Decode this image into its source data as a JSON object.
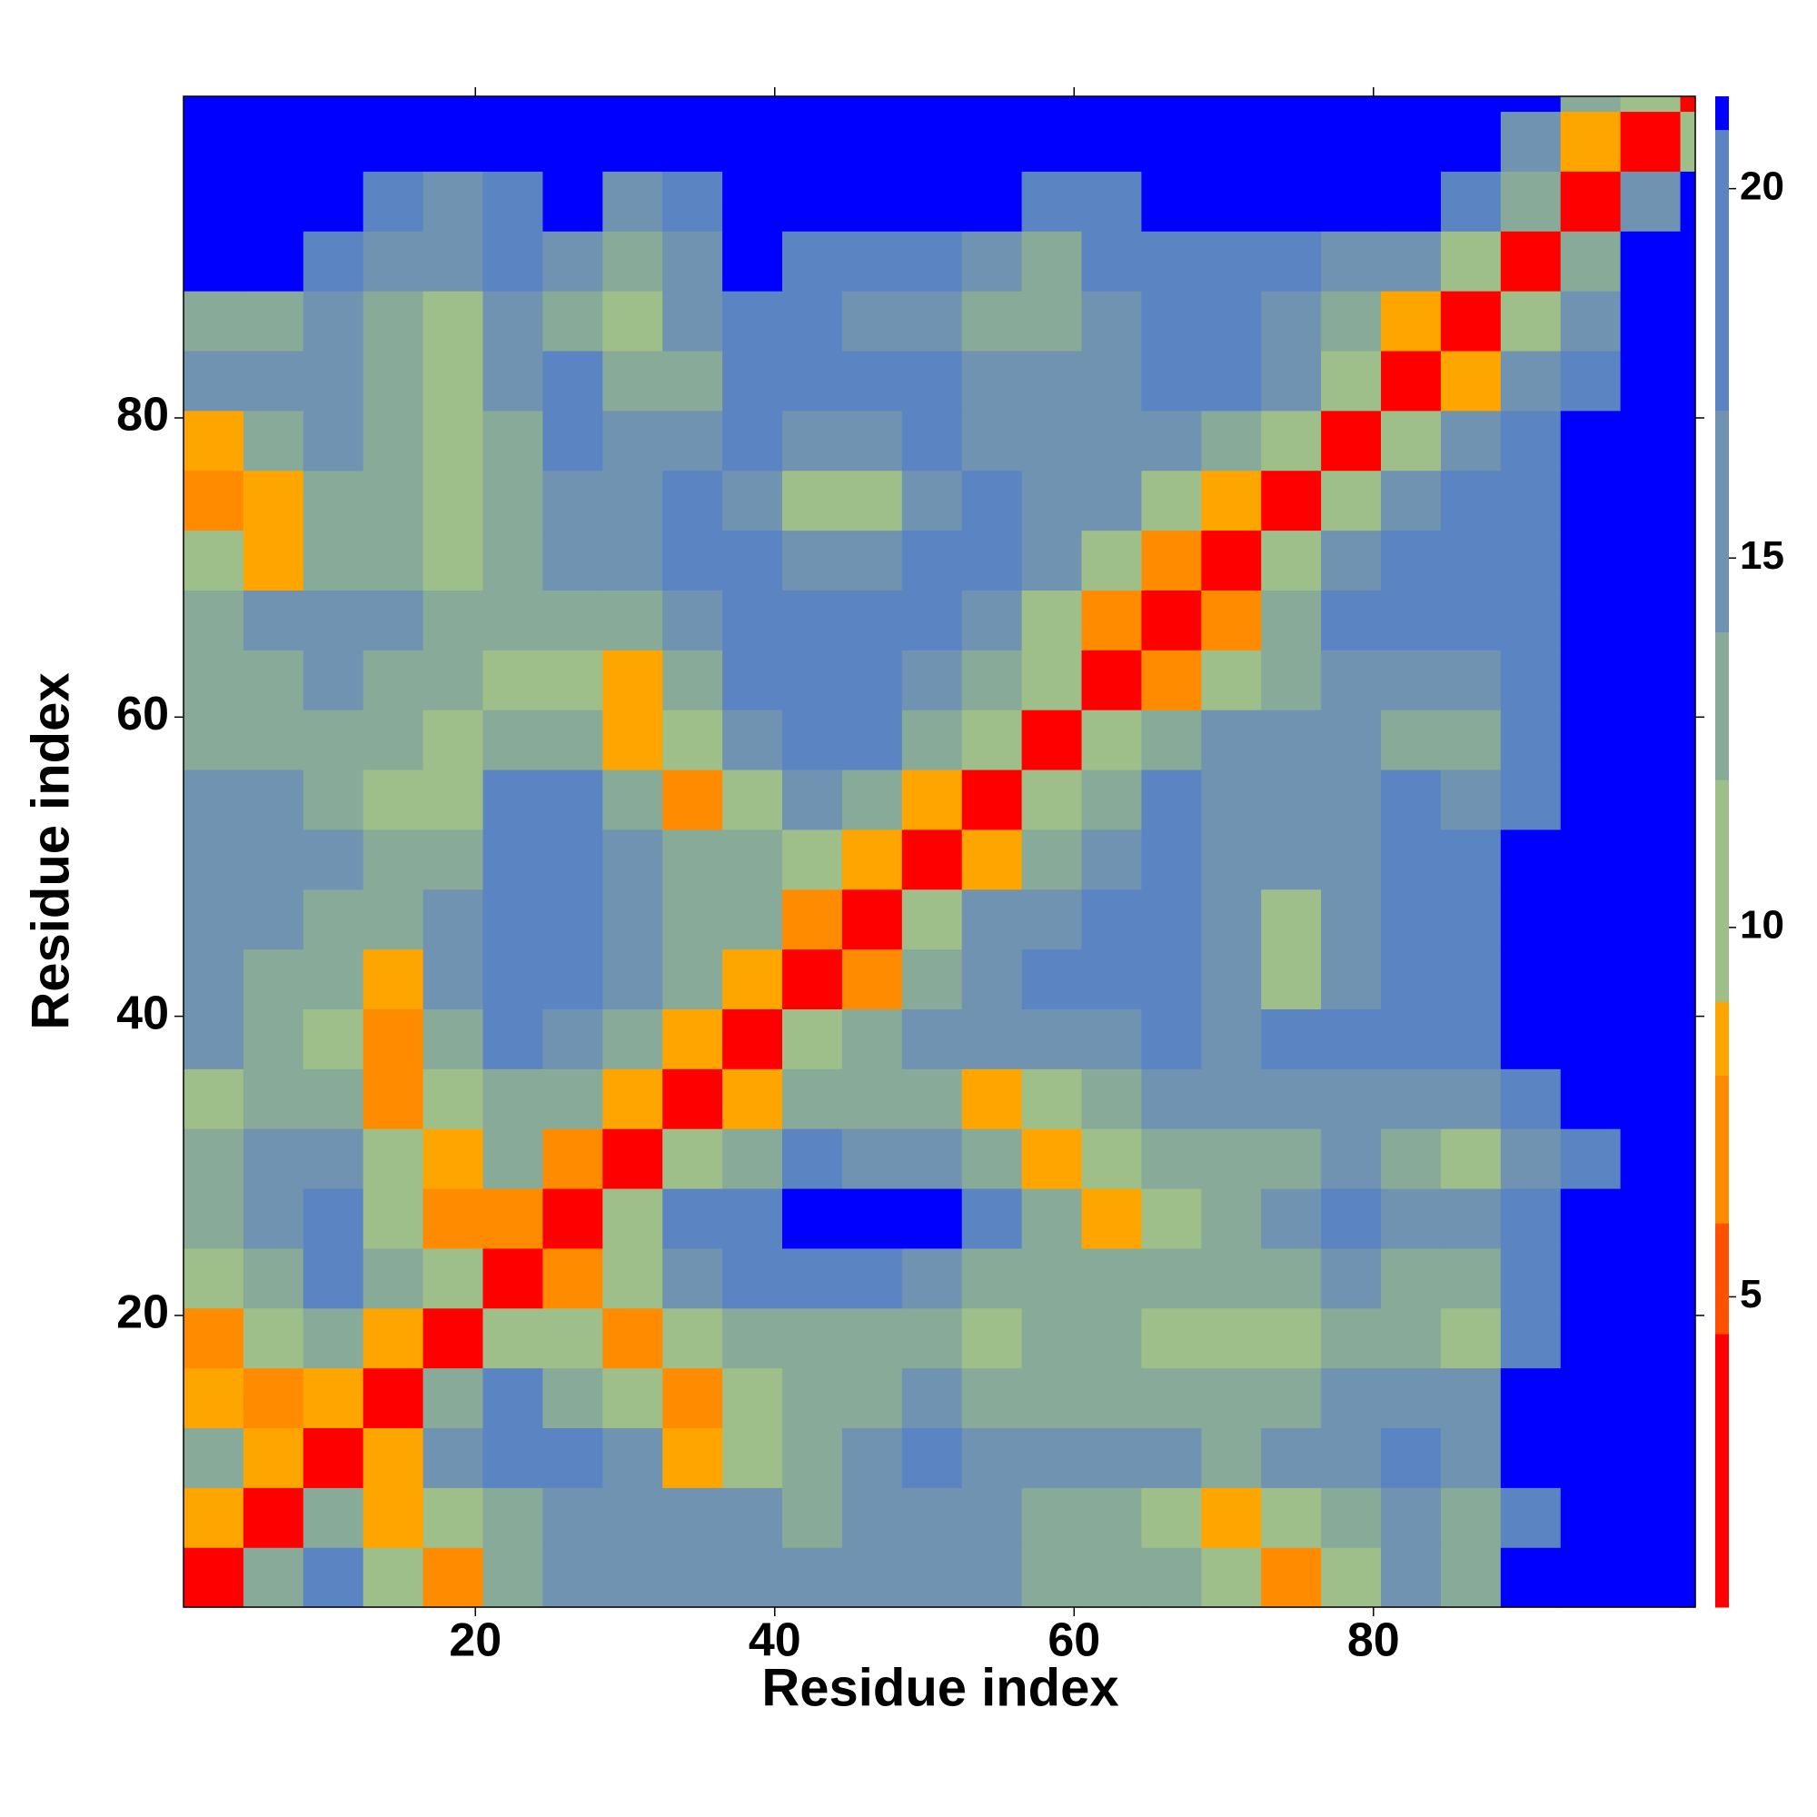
{
  "chart_data": {
    "type": "heatmap",
    "xlabel": "Residue index",
    "ylabel": "Residue index",
    "bins": [
      0.5,
      4.5,
      8.5,
      12.5,
      16.5,
      20.5,
      24.5,
      28.5,
      32.5,
      36.5,
      40.5,
      44.5,
      48.5,
      52.5,
      56.5,
      60.5,
      64.5,
      68.5,
      72.5,
      76.5,
      80.5,
      84.5,
      88.5,
      92.5,
      96.5,
      100.5,
      101.5
    ],
    "xlim": [
      0.5,
      101.5
    ],
    "ylim": [
      0.5,
      101.5
    ],
    "xticks": [
      20,
      40,
      60,
      80
    ],
    "yticks": [
      20,
      40,
      60,
      80
    ],
    "zlim": [
      0.8,
      21.25
    ],
    "zticks": [
      5,
      10,
      15,
      20
    ],
    "colorscale": [
      {
        "value": 0.8,
        "color": "#ff0000"
      },
      {
        "value": 4.5,
        "color": "#ff5000"
      },
      {
        "value": 6,
        "color": "#ff8c00"
      },
      {
        "value": 8,
        "color": "#ffa500"
      },
      {
        "value": 9,
        "color": "#9fbf8a"
      },
      {
        "value": 12,
        "color": "#88aa98"
      },
      {
        "value": 14,
        "color": "#6f93b0"
      },
      {
        "value": 17,
        "color": "#5b85c2"
      },
      {
        "value": 20.8,
        "color": "#0000ff"
      }
    ],
    "z": [
      [
        3,
        12,
        18,
        9,
        7,
        12,
        14,
        15,
        16,
        16,
        15,
        16,
        15,
        15,
        13,
        13,
        12,
        11,
        7,
        10,
        14,
        13,
        21,
        21,
        21,
        21
      ],
      [
        8,
        3,
        12,
        8,
        9,
        13,
        16,
        16,
        15,
        14,
        13,
        16,
        15,
        14,
        13,
        13,
        11,
        8,
        9,
        12,
        14,
        13,
        19,
        21,
        21,
        21
      ],
      [
        12,
        8,
        3,
        8,
        14,
        20,
        19,
        14,
        8,
        10,
        13,
        14,
        17,
        16,
        14,
        14,
        14,
        13,
        15,
        16,
        17,
        16,
        21,
        21,
        21,
        21
      ],
      [
        8,
        7,
        8,
        3,
        13,
        18,
        12,
        9,
        7,
        9,
        12,
        13,
        14,
        13,
        13,
        13,
        12,
        12,
        13,
        14,
        15,
        15,
        21,
        21,
        21,
        21
      ],
      [
        7,
        9,
        13,
        8,
        3,
        10,
        9,
        7,
        10,
        12,
        13,
        12,
        12,
        11,
        12,
        12,
        11,
        11,
        11,
        12,
        12,
        11,
        18,
        21,
        21,
        21
      ],
      [
        9,
        13,
        18,
        13,
        9,
        3,
        6,
        9,
        16,
        20,
        19,
        19,
        16,
        13,
        12,
        12,
        12,
        12,
        13,
        15,
        13,
        12,
        17,
        21,
        21,
        21
      ],
      [
        12,
        15,
        20,
        11,
        7,
        6,
        3,
        9,
        17,
        20,
        21,
        21,
        21,
        17,
        12,
        8,
        11,
        12,
        14,
        17,
        16,
        15,
        17,
        21,
        21,
        21
      ],
      [
        12,
        14,
        16,
        9,
        8,
        12,
        7,
        3,
        9,
        13,
        17,
        16,
        14,
        12,
        8,
        11,
        12,
        12,
        13,
        14,
        13,
        11,
        14,
        20,
        21,
        21
      ],
      [
        11,
        12,
        12,
        7,
        10,
        13,
        12,
        8,
        3,
        8,
        12,
        13,
        12,
        8,
        11,
        13,
        14,
        14,
        15,
        16,
        16,
        14,
        18,
        21,
        21,
        21
      ],
      [
        14,
        12,
        10,
        7,
        13,
        19,
        16,
        12,
        8,
        3,
        9,
        13,
        14,
        14,
        16,
        16,
        17,
        16,
        17,
        18,
        19,
        19,
        21,
        21,
        21,
        21
      ],
      [
        14,
        13,
        12,
        8,
        14,
        19,
        20,
        14,
        12,
        8,
        3,
        7,
        12,
        15,
        17,
        17,
        18,
        14,
        11,
        15,
        19,
        19,
        21,
        21,
        21,
        21
      ],
      [
        15,
        14,
        13,
        12,
        14,
        20,
        20,
        15,
        13,
        12,
        7,
        3,
        9,
        14,
        16,
        17,
        17,
        14,
        11,
        15,
        19,
        20,
        21,
        21,
        21,
        21
      ],
      [
        14,
        16,
        14,
        13,
        12,
        18,
        19,
        14,
        12,
        13,
        10,
        8,
        3,
        8,
        12,
        15,
        17,
        16,
        15,
        16,
        17,
        19,
        21,
        21,
        21,
        21
      ],
      [
        14,
        15,
        13,
        11,
        11,
        17,
        18,
        12,
        7,
        11,
        14,
        12,
        8,
        3,
        9,
        13,
        17,
        16,
        16,
        16,
        17,
        16,
        20,
        21,
        21,
        21
      ],
      [
        13,
        13,
        12,
        12,
        11,
        13,
        12,
        8,
        9,
        14,
        18,
        17,
        12,
        9,
        3,
        9,
        12,
        15,
        15,
        14,
        13,
        13,
        18,
        21,
        21,
        21
      ],
      [
        12,
        13,
        14,
        13,
        12,
        11,
        11,
        8,
        12,
        17,
        18,
        19,
        16,
        13,
        9,
        3,
        7,
        10,
        13,
        15,
        14,
        14,
        17,
        21,
        21,
        21
      ],
      [
        13,
        14,
        15,
        14,
        13,
        12,
        12,
        12,
        16,
        19,
        19,
        18,
        19,
        15,
        11,
        7,
        3,
        7,
        13,
        17,
        17,
        18,
        19,
        21,
        21,
        21
      ],
      [
        10,
        8,
        13,
        12,
        10,
        12,
        14,
        15,
        18,
        17,
        14,
        16,
        19,
        17,
        14,
        10,
        7,
        3,
        9,
        15,
        18,
        18,
        20,
        21,
        21,
        21
      ],
      [
        7,
        8,
        12,
        13,
        11,
        13,
        15,
        16,
        17,
        14,
        9,
        11,
        16,
        17,
        15,
        15,
        11,
        8,
        3,
        9,
        15,
        18,
        19,
        21,
        21,
        21
      ],
      [
        8,
        13,
        15,
        12,
        11,
        13,
        17,
        15,
        16,
        17,
        15,
        16,
        17,
        16,
        15,
        16,
        15,
        12,
        9,
        3,
        9,
        14,
        18,
        21,
        21,
        21
      ],
      [
        15,
        14,
        16,
        13,
        11,
        15,
        18,
        12,
        13,
        18,
        19,
        17,
        17,
        14,
        14,
        15,
        18,
        18,
        14,
        9,
        3,
        8,
        15,
        19,
        21,
        21
      ],
      [
        13,
        12,
        16,
        13,
        10,
        14,
        13,
        9,
        14,
        18,
        19,
        16,
        15,
        13,
        13,
        16,
        18,
        17,
        16,
        13,
        8,
        3,
        11,
        16,
        21,
        21
      ],
      [
        21,
        21,
        19,
        16,
        14,
        17,
        14,
        12,
        16,
        21,
        20,
        19,
        19,
        16,
        13,
        17,
        20,
        20,
        18,
        16,
        14,
        11,
        3,
        12,
        21,
        21
      ],
      [
        21,
        21,
        21,
        20,
        16,
        19,
        21,
        15,
        20,
        21,
        21,
        21,
        21,
        21,
        17,
        19,
        21,
        21,
        21,
        21,
        21,
        18,
        12,
        3,
        14,
        21
      ],
      [
        21,
        21,
        21,
        21,
        21,
        21,
        21,
        21,
        21,
        21,
        21,
        21,
        21,
        21,
        21,
        21,
        21,
        21,
        21,
        21,
        21,
        21,
        16,
        8,
        3,
        11
      ],
      [
        21,
        21,
        21,
        21,
        21,
        21,
        21,
        21,
        21,
        21,
        21,
        21,
        21,
        21,
        21,
        21,
        21,
        21,
        21,
        21,
        21,
        21,
        21,
        12,
        9,
        3
      ]
    ]
  }
}
